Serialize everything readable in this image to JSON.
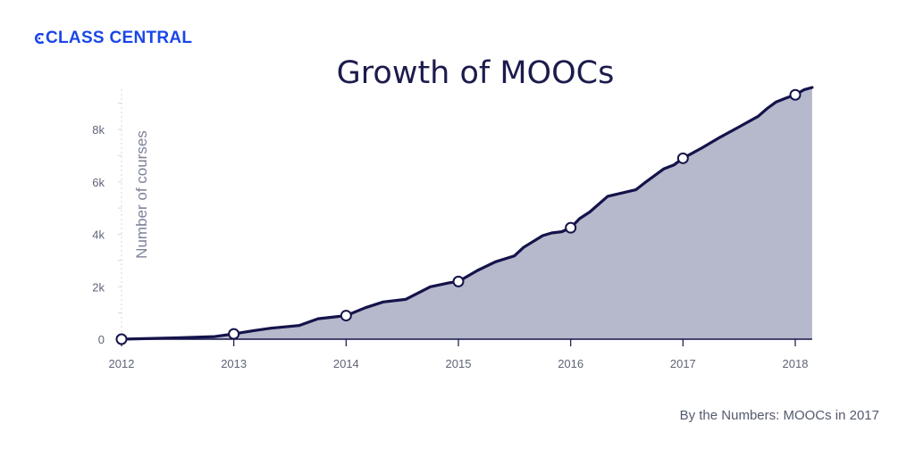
{
  "brand": {
    "name": "CLASS CENTRAL",
    "color": "#1a47e8",
    "icon": "class-central-logo-icon"
  },
  "footer": "By the Numbers: MOOCs in 2017",
  "colors": {
    "line": "#14134a",
    "area": "#b6b8cc",
    "marker_fill": "#ffffff",
    "grid": "#d5d7e0"
  },
  "chart_data": {
    "type": "area",
    "title": "Growth of MOOCs",
    "xlabel": "",
    "ylabel": "Number of courses",
    "xlim": [
      2012,
      2018.15
    ],
    "ylim": [
      0,
      9600
    ],
    "x_ticks": [
      "2012",
      "2013",
      "2014",
      "2015",
      "2016",
      "2017",
      "2018"
    ],
    "y_ticks": [
      {
        "value": 0,
        "label": "0"
      },
      {
        "value": 2000,
        "label": "2k"
      },
      {
        "value": 4000,
        "label": "4k"
      },
      {
        "value": 6000,
        "label": "6k"
      },
      {
        "value": 8000,
        "label": "8k"
      }
    ],
    "grid": false,
    "series": [
      {
        "x": [
          2012.0,
          2012.5,
          2012.83,
          2013.0,
          2013.17,
          2013.33,
          2013.58,
          2013.75,
          2013.9,
          2014.0,
          2014.17,
          2014.33,
          2014.53,
          2014.75,
          2014.92,
          2015.0,
          2015.17,
          2015.33,
          2015.5,
          2015.58,
          2015.75,
          2015.83,
          2015.92,
          2016.0,
          2016.08,
          2016.17,
          2016.33,
          2016.58,
          2016.67,
          2016.83,
          2016.92,
          2017.0,
          2017.17,
          2017.33,
          2017.5,
          2017.67,
          2017.75,
          2017.83,
          2017.92,
          2018.0,
          2018.08,
          2018.15
        ],
        "y": [
          0,
          50,
          100,
          200,
          320,
          420,
          520,
          780,
          850,
          900,
          1200,
          1420,
          1520,
          2000,
          2150,
          2200,
          2620,
          2950,
          3180,
          3500,
          3950,
          4050,
          4100,
          4250,
          4600,
          4850,
          5450,
          5700,
          6000,
          6500,
          6650,
          6900,
          7300,
          7700,
          8100,
          8500,
          8800,
          9050,
          9200,
          9320,
          9520,
          9600
        ]
      }
    ],
    "markers": [
      {
        "x": 2012.0,
        "y": 0
      },
      {
        "x": 2013.0,
        "y": 200
      },
      {
        "x": 2014.0,
        "y": 900
      },
      {
        "x": 2015.0,
        "y": 2200
      },
      {
        "x": 2016.0,
        "y": 4250
      },
      {
        "x": 2017.0,
        "y": 6900
      },
      {
        "x": 2018.0,
        "y": 9320
      }
    ]
  }
}
